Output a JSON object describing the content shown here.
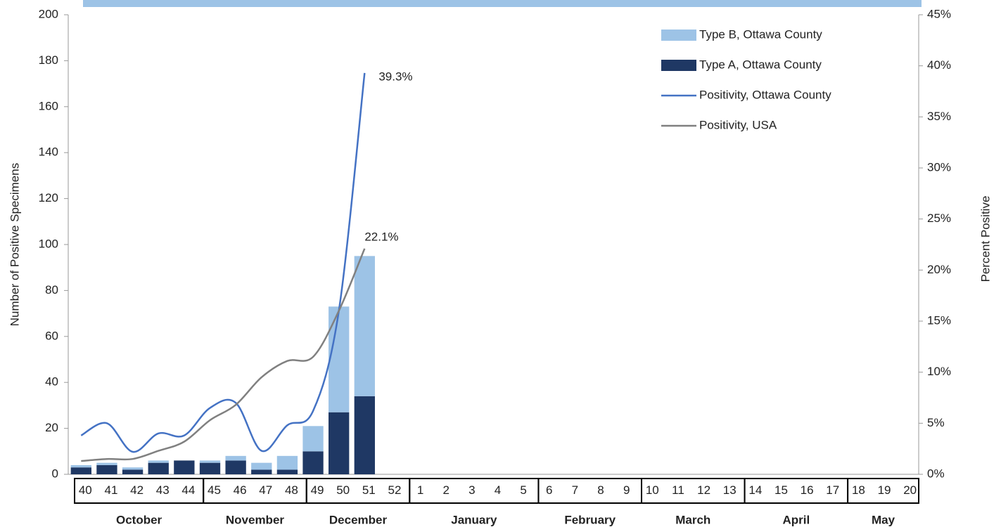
{
  "chart_data": {
    "type": "bar",
    "categories": [
      "40",
      "41",
      "42",
      "43",
      "44",
      "45",
      "46",
      "47",
      "48",
      "49",
      "50",
      "51",
      "52",
      "1",
      "2",
      "3",
      "4",
      "5",
      "6",
      "7",
      "8",
      "9",
      "10",
      "11",
      "12",
      "13",
      "14",
      "15",
      "16",
      "17",
      "18",
      "19",
      "20"
    ],
    "month_groups": [
      {
        "label": "October",
        "from": "40",
        "to": "44"
      },
      {
        "label": "November",
        "from": "45",
        "to": "48"
      },
      {
        "label": "December",
        "from": "49",
        "to": "52"
      },
      {
        "label": "January",
        "from": "1",
        "to": "5"
      },
      {
        "label": "February",
        "from": "6",
        "to": "9"
      },
      {
        "label": "March",
        "from": "10",
        "to": "13"
      },
      {
        "label": "April",
        "from": "14",
        "to": "17"
      },
      {
        "label": "May",
        "from": "18",
        "to": "20"
      }
    ],
    "y_label": "Number of Positive Specimens",
    "y2_label": "Percent Positive",
    "ylim": [
      0,
      200
    ],
    "yticks": [
      0,
      20,
      40,
      60,
      80,
      100,
      120,
      140,
      160,
      180,
      200
    ],
    "y2lim": [
      0,
      45
    ],
    "y2ticks": [
      {
        "value": 0,
        "label": "0%"
      },
      {
        "value": 5,
        "label": "5%"
      },
      {
        "value": 10,
        "label": "10%"
      },
      {
        "value": 15,
        "label": "15%"
      },
      {
        "value": 20,
        "label": "20%"
      },
      {
        "value": 25,
        "label": "25%"
      },
      {
        "value": 30,
        "label": "30%"
      },
      {
        "value": 35,
        "label": "35%"
      },
      {
        "value": 40,
        "label": "40%"
      },
      {
        "value": 45,
        "label": "45%"
      }
    ],
    "legend": "upper right",
    "series": [
      {
        "name": "Type B, Ottawa County",
        "type": "bar",
        "color": "#9dc3e6",
        "values": [
          1,
          1,
          1,
          1,
          0,
          1,
          2,
          3,
          6,
          11,
          46,
          61,
          null,
          null,
          null,
          null,
          null,
          null,
          null,
          null,
          null,
          null,
          null,
          null,
          null,
          null,
          null,
          null,
          null,
          null,
          null,
          null,
          null
        ]
      },
      {
        "name": "Type A, Ottawa County",
        "type": "bar",
        "color": "#1f3864",
        "values": [
          3,
          4,
          2,
          5,
          6,
          5,
          6,
          2,
          2,
          10,
          27,
          34,
          null,
          null,
          null,
          null,
          null,
          null,
          null,
          null,
          null,
          null,
          null,
          null,
          null,
          null,
          null,
          null,
          null,
          null,
          null,
          null,
          null
        ]
      },
      {
        "name": "Positivity, Ottawa County",
        "type": "line",
        "axis": "y2",
        "color": "#4472c4",
        "values": [
          3.8,
          5.0,
          2.2,
          4.0,
          3.8,
          6.5,
          7.0,
          2.3,
          4.8,
          6.2,
          16,
          39.3,
          null,
          null,
          null,
          null,
          null,
          null,
          null,
          null,
          null,
          null,
          null,
          null,
          null,
          null,
          null,
          null,
          null,
          null,
          null,
          null,
          null
        ],
        "value_labels": [
          null,
          null,
          null,
          null,
          null,
          null,
          null,
          null,
          null,
          null,
          null,
          "39.3%",
          null,
          null,
          null,
          null,
          null,
          null,
          null,
          null,
          null,
          null,
          null,
          null,
          null,
          null,
          null,
          null,
          null,
          null,
          null,
          null,
          null
        ]
      },
      {
        "name": "Positivity, USA",
        "type": "line",
        "axis": "y2",
        "color": "#808080",
        "values": [
          1.3,
          1.5,
          1.5,
          2.3,
          3.2,
          5.3,
          6.8,
          9.5,
          11.1,
          11.5,
          16,
          22.1,
          null,
          null,
          null,
          null,
          null,
          null,
          null,
          null,
          null,
          null,
          null,
          null,
          null,
          null,
          null,
          null,
          null,
          null,
          null,
          null,
          null
        ],
        "value_labels": [
          null,
          null,
          null,
          null,
          null,
          null,
          null,
          null,
          null,
          null,
          null,
          "22.1%",
          null,
          null,
          null,
          null,
          null,
          null,
          null,
          null,
          null,
          null,
          null,
          null,
          null,
          null,
          null,
          null,
          null,
          null,
          null,
          null,
          null
        ]
      }
    ]
  }
}
